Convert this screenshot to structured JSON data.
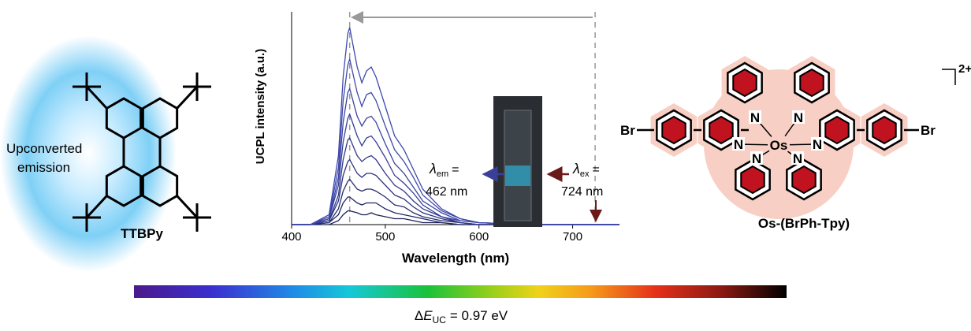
{
  "left": {
    "caption": [
      "Upconverted",
      "emission"
    ],
    "molecule": "TTBPy"
  },
  "chart_data": {
    "type": "line",
    "xlabel": "Wavelength (nm)",
    "ylabel": "UCPL intensity (a.u.)",
    "xlim": [
      400,
      750
    ],
    "ylim": [
      0,
      1.08
    ],
    "xticks": [
      400,
      500,
      600,
      700
    ],
    "x": [
      400,
      420,
      440,
      450,
      455,
      460,
      462,
      470,
      475,
      480,
      485,
      490,
      500,
      510,
      520,
      530,
      540,
      560,
      580,
      600,
      650,
      700,
      750
    ],
    "series": [
      {
        "color": "#3f48b0",
        "values": [
          0,
          0,
          0.05,
          0.35,
          0.75,
          0.97,
          1.0,
          0.8,
          0.72,
          0.78,
          0.8,
          0.75,
          0.6,
          0.45,
          0.38,
          0.28,
          0.18,
          0.08,
          0.03,
          0.01,
          0,
          0,
          0
        ]
      },
      {
        "color": "#4049ab",
        "values": [
          0,
          0,
          0.04,
          0.29,
          0.63,
          0.81,
          0.84,
          0.67,
          0.6,
          0.66,
          0.67,
          0.63,
          0.5,
          0.38,
          0.32,
          0.24,
          0.15,
          0.07,
          0.03,
          0.01,
          0,
          0,
          0
        ]
      },
      {
        "color": "#3a43a0",
        "values": [
          0,
          0,
          0.03,
          0.24,
          0.52,
          0.67,
          0.69,
          0.55,
          0.5,
          0.54,
          0.55,
          0.52,
          0.41,
          0.31,
          0.26,
          0.19,
          0.12,
          0.06,
          0.02,
          0.01,
          0,
          0,
          0
        ]
      },
      {
        "color": "#363e96",
        "values": [
          0,
          0,
          0.03,
          0.2,
          0.42,
          0.54,
          0.56,
          0.45,
          0.4,
          0.44,
          0.45,
          0.42,
          0.34,
          0.25,
          0.21,
          0.16,
          0.1,
          0.04,
          0.02,
          0.01,
          0,
          0,
          0
        ]
      },
      {
        "color": "#30388a",
        "values": [
          0,
          0,
          0.02,
          0.15,
          0.33,
          0.43,
          0.44,
          0.35,
          0.32,
          0.34,
          0.35,
          0.33,
          0.26,
          0.2,
          0.17,
          0.12,
          0.08,
          0.04,
          0.01,
          0,
          0,
          0,
          0
        ]
      },
      {
        "color": "#2b327e",
        "values": [
          0,
          0,
          0.02,
          0.12,
          0.25,
          0.32,
          0.33,
          0.26,
          0.24,
          0.26,
          0.26,
          0.25,
          0.2,
          0.15,
          0.13,
          0.09,
          0.06,
          0.03,
          0.01,
          0,
          0,
          0,
          0
        ]
      },
      {
        "color": "#262c72",
        "values": [
          0,
          0,
          0.01,
          0.08,
          0.17,
          0.22,
          0.23,
          0.18,
          0.17,
          0.18,
          0.18,
          0.17,
          0.14,
          0.1,
          0.09,
          0.06,
          0.04,
          0.02,
          0.01,
          0,
          0,
          0,
          0
        ]
      },
      {
        "color": "#212666",
        "values": [
          0,
          0,
          0.01,
          0.05,
          0.11,
          0.14,
          0.14,
          0.11,
          0.1,
          0.11,
          0.11,
          0.11,
          0.08,
          0.06,
          0.05,
          0.04,
          0.03,
          0.01,
          0,
          0,
          0,
          0,
          0
        ]
      },
      {
        "color": "#1c2058",
        "values": [
          0,
          0,
          0,
          0.02,
          0.05,
          0.07,
          0.07,
          0.06,
          0.05,
          0.05,
          0.06,
          0.05,
          0.04,
          0.03,
          0.03,
          0.02,
          0.01,
          0.01,
          0,
          0,
          0,
          0,
          0
        ]
      }
    ],
    "annotations": [
      {
        "symbol": "λ",
        "subscript": "em",
        "equals": "=",
        "value": "462 nm",
        "x": 462
      },
      {
        "symbol": "λ",
        "subscript": "ex",
        "equals": "=",
        "value": "724 nm",
        "x": 724
      }
    ]
  },
  "right": {
    "name": "Os-(BrPh-Tpy)",
    "charge": "2+",
    "metal": "Os",
    "halogen": "Br",
    "nitrogen": "N"
  },
  "bottom": {
    "delta": "Δ",
    "symbol": "E",
    "subscript": "UC",
    "value": "= 0.97 eV"
  }
}
